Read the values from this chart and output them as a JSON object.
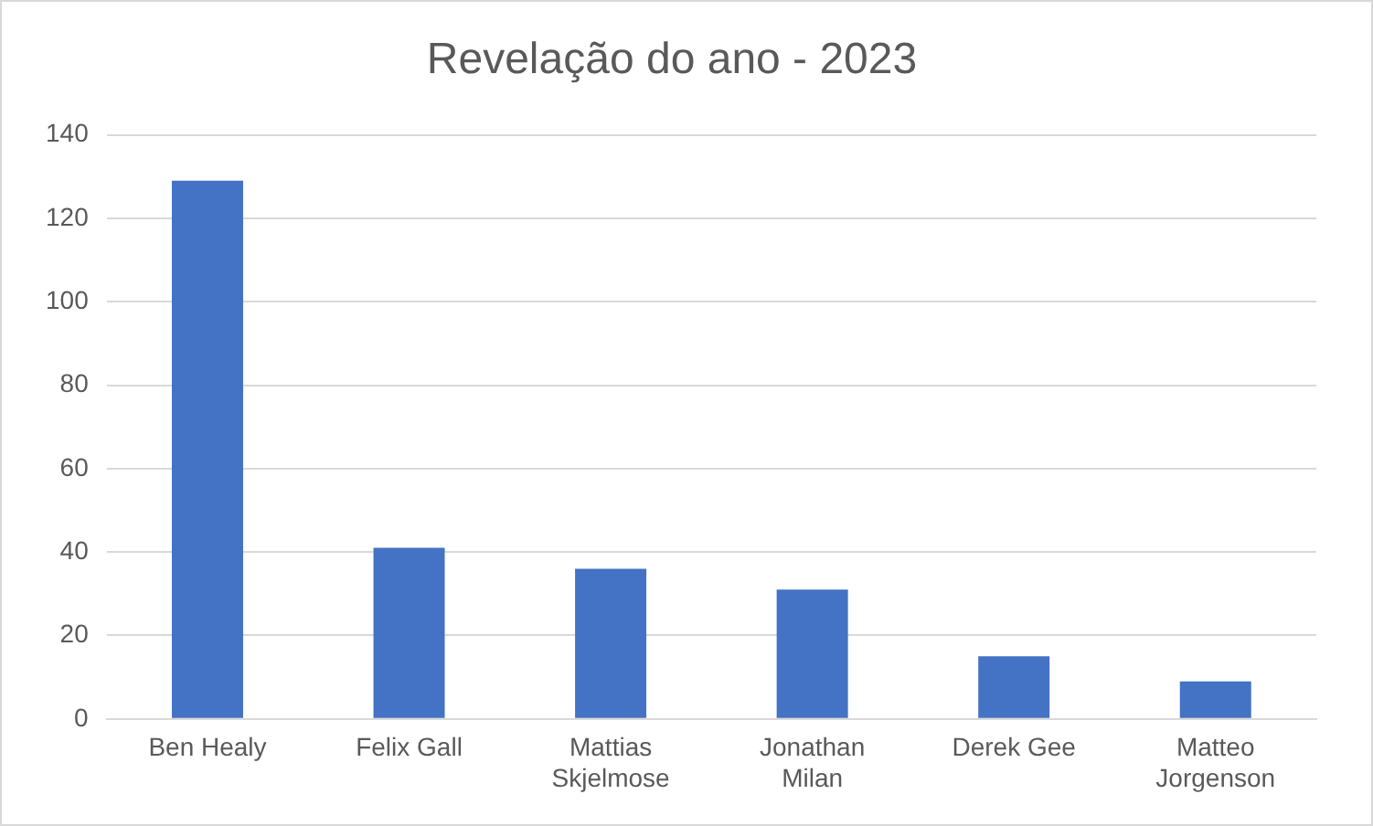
{
  "chart_data": {
    "type": "bar",
    "title": "Revelação do ano - 2023",
    "categories": [
      "Ben Healy",
      "Felix Gall",
      "Mattias Skjelmose",
      "Jonathan Milan",
      "Derek Gee",
      "Matteo Jorgenson"
    ],
    "values": [
      129,
      41,
      36,
      31,
      15,
      9
    ],
    "color": "#4472c4",
    "ylim": [
      0,
      140
    ],
    "yticks": [
      0,
      20,
      40,
      60,
      80,
      100,
      120,
      140
    ],
    "grid": "y"
  }
}
